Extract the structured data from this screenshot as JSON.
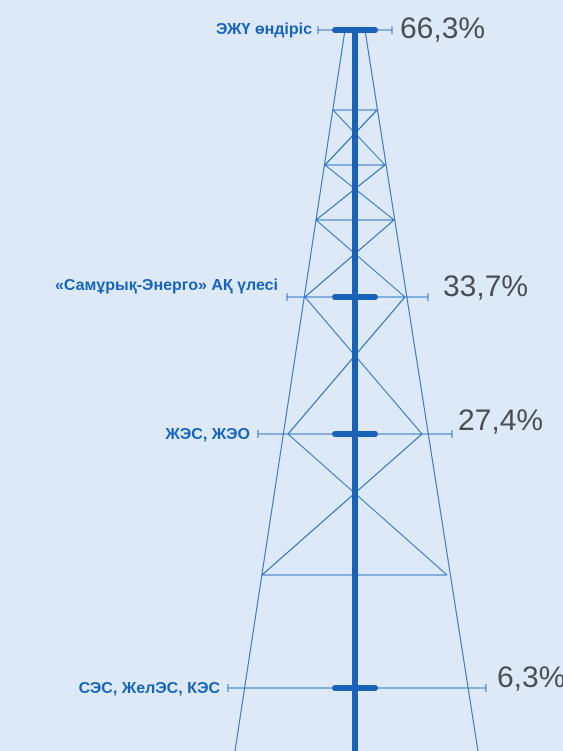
{
  "items": [
    {
      "label": "ЭЖҮ өндіріс",
      "value": "66,3%"
    },
    {
      "label": "«Самұрық-Энерго» АҚ үлесі",
      "value": "33,7%"
    },
    {
      "label": "ЖЭС, ЖЭО",
      "value": "27,4%"
    },
    {
      "label": "СЭС, ЖелЭС, КЭС",
      "value": "6,3%"
    }
  ]
}
